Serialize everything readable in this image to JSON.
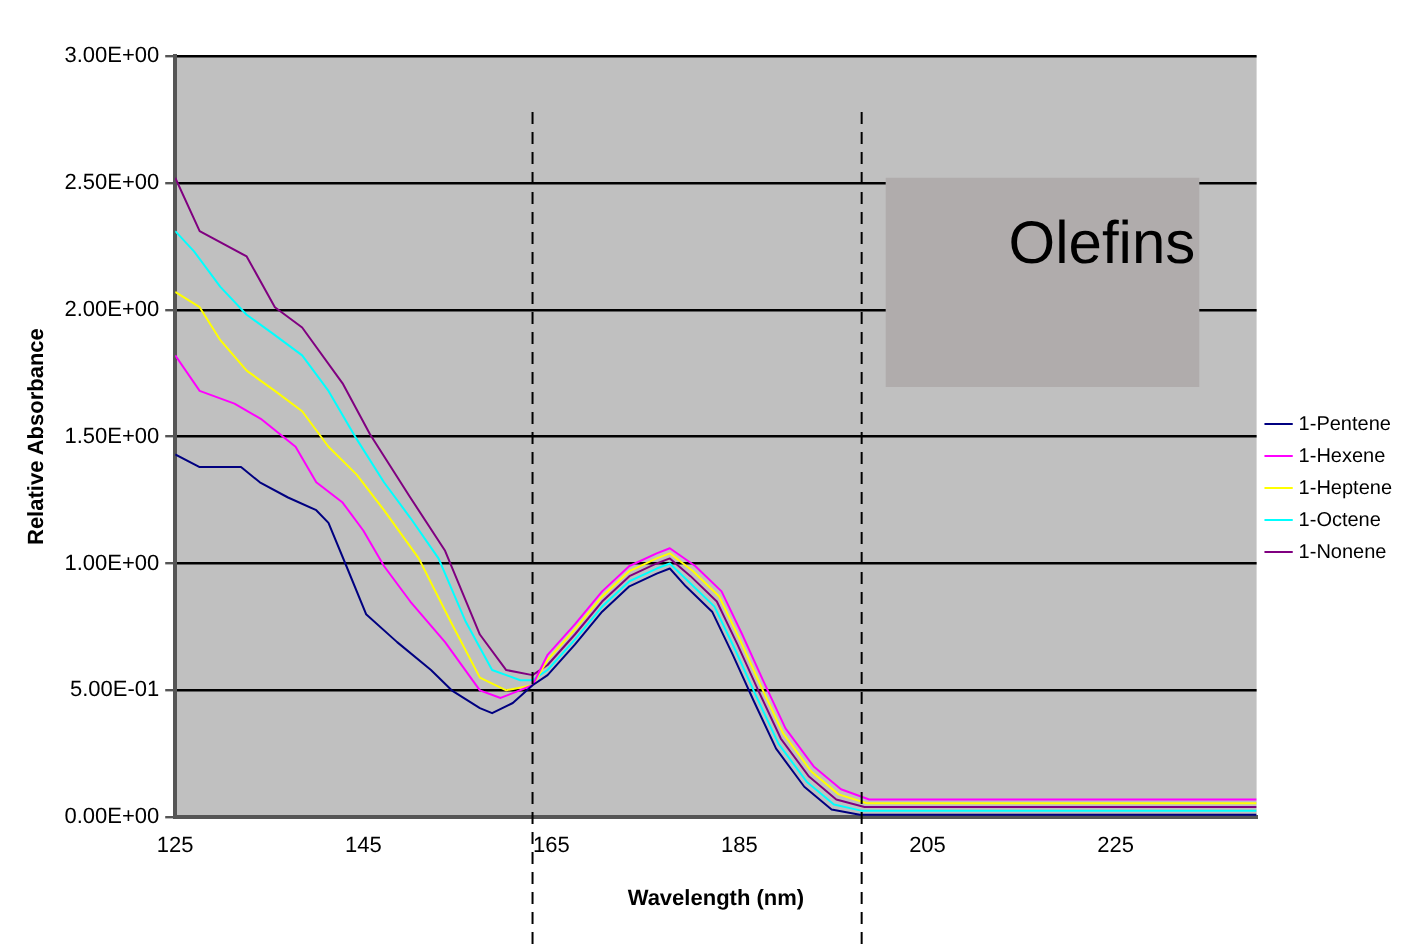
{
  "chart_data": {
    "type": "line",
    "xlabel": "Wavelength (nm)",
    "ylabel": "Relative Absorbance",
    "annotations": [
      "Olefins"
    ],
    "xlim": [
      125,
      240
    ],
    "xticks": [
      125,
      145,
      165,
      185,
      205,
      225
    ],
    "ylim": [
      0,
      3
    ],
    "yticks": [
      {
        "value": 0,
        "label": "0.00E+00"
      },
      {
        "value": 0.5,
        "label": "5.00E-01"
      },
      {
        "value": 1,
        "label": "1.00E+00"
      },
      {
        "value": 1.5,
        "label": "1.50E+00"
      },
      {
        "value": 2,
        "label": "2.00E+00"
      },
      {
        "value": 2.5,
        "label": "2.50E+00"
      },
      {
        "value": 3,
        "label": "3.00E+00"
      }
    ],
    "grid": "y",
    "legend": "right",
    "marker": "none",
    "line_style": "solid",
    "ref_lines": [
      {
        "axis": "x",
        "value": 163,
        "color": "#000000",
        "line_style": "dashed"
      },
      {
        "axis": "x",
        "value": 198,
        "color": "#000000",
        "line_style": "dashed"
      }
    ],
    "series": [
      {
        "name": "1-Pentene",
        "color": "#000080",
        "x": [
          125,
          127.6,
          132,
          134,
          137,
          140,
          141.3,
          143.2,
          145.3,
          148.6,
          152.2,
          154.4,
          157.4,
          158.7,
          160.9,
          163,
          164.6,
          167.5,
          170.4,
          173.3,
          176.2,
          177.6,
          179.3,
          182.1,
          184.3,
          186.5,
          188.9,
          191.9,
          194.8,
          197.8,
          210,
          225,
          240
        ],
        "values": [
          1.43,
          1.38,
          1.38,
          1.32,
          1.26,
          1.21,
          1.16,
          0.99,
          0.8,
          0.69,
          0.58,
          0.5,
          0.43,
          0.41,
          0.45,
          0.52,
          0.56,
          0.68,
          0.81,
          0.91,
          0.96,
          0.98,
          0.91,
          0.81,
          0.64,
          0.46,
          0.27,
          0.12,
          0.03,
          0.01,
          0.01,
          0.01,
          0.01
        ]
      },
      {
        "name": "1-Hexene",
        "color": "#ff00ff",
        "x": [
          125,
          127.6,
          131.3,
          134.1,
          137.8,
          140,
          142.8,
          145,
          147.2,
          150,
          153.7,
          157.4,
          159.6,
          163,
          164.6,
          167.5,
          170.4,
          173.3,
          176.2,
          177.6,
          180.3,
          183.1,
          185.3,
          187.5,
          189.9,
          192.9,
          195.8,
          198.8,
          210,
          225,
          240
        ],
        "values": [
          1.82,
          1.68,
          1.63,
          1.57,
          1.46,
          1.32,
          1.24,
          1.13,
          0.99,
          0.85,
          0.69,
          0.5,
          0.47,
          0.52,
          0.64,
          0.76,
          0.89,
          0.99,
          1.04,
          1.06,
          0.99,
          0.89,
          0.72,
          0.54,
          0.35,
          0.2,
          0.11,
          0.07,
          0.07,
          0.07,
          0.07
        ]
      },
      {
        "name": "1-Heptene",
        "color": "#ffff00",
        "x": [
          125,
          127.6,
          129.8,
          132.6,
          135.6,
          138.5,
          141.3,
          144.3,
          147.2,
          150.9,
          154.3,
          157.4,
          160.2,
          163,
          164.6,
          167.5,
          170.4,
          173.3,
          176.2,
          177.6,
          180.05,
          182.85,
          185.05,
          187.25,
          189.65,
          192.65,
          195.55,
          198.55,
          210,
          225,
          240
        ],
        "values": [
          2.07,
          2.01,
          1.88,
          1.76,
          1.68,
          1.6,
          1.46,
          1.35,
          1.21,
          1.02,
          0.77,
          0.55,
          0.5,
          0.52,
          0.62,
          0.74,
          0.87,
          0.97,
          1.02,
          1.04,
          0.97,
          0.87,
          0.7,
          0.52,
          0.33,
          0.18,
          0.09,
          0.055,
          0.055,
          0.055,
          0.055
        ]
      },
      {
        "name": "1-Octene",
        "color": "#00ffff",
        "x": [
          125,
          127,
          129.8,
          132.6,
          135.6,
          138.5,
          141.3,
          144.3,
          147.2,
          150,
          153,
          155.9,
          158.7,
          161.7,
          163,
          164.6,
          167.5,
          170.4,
          173.3,
          176.2,
          177.6,
          179.55,
          182.35,
          184.55,
          186.75,
          189.15,
          192.15,
          195.05,
          198.05,
          210,
          225,
          240
        ],
        "values": [
          2.31,
          2.23,
          2.09,
          1.98,
          1.9,
          1.82,
          1.68,
          1.49,
          1.32,
          1.18,
          1.02,
          0.77,
          0.58,
          0.54,
          0.54,
          0.58,
          0.7,
          0.83,
          0.93,
          0.98,
          1.0,
          0.93,
          0.83,
          0.66,
          0.48,
          0.29,
          0.14,
          0.05,
          0.025,
          0.025,
          0.025,
          0.025
        ]
      },
      {
        "name": "1-Nonene",
        "color": "#800080",
        "x": [
          125,
          127.6,
          132.6,
          135.6,
          138.5,
          142.8,
          145.7,
          150,
          153.7,
          157.4,
          160.2,
          163,
          164.6,
          167.5,
          170.4,
          173.3,
          176.2,
          177.6,
          179.8,
          182.6,
          184.8,
          187,
          189.4,
          192.4,
          195.3,
          198.3,
          210,
          225,
          240
        ],
        "values": [
          2.52,
          2.31,
          2.21,
          2.01,
          1.93,
          1.71,
          1.51,
          1.26,
          1.05,
          0.72,
          0.58,
          0.56,
          0.6,
          0.72,
          0.85,
          0.95,
          1.0,
          1.02,
          0.95,
          0.85,
          0.68,
          0.5,
          0.31,
          0.16,
          0.07,
          0.04,
          0.04,
          0.04,
          0.04
        ]
      }
    ]
  }
}
